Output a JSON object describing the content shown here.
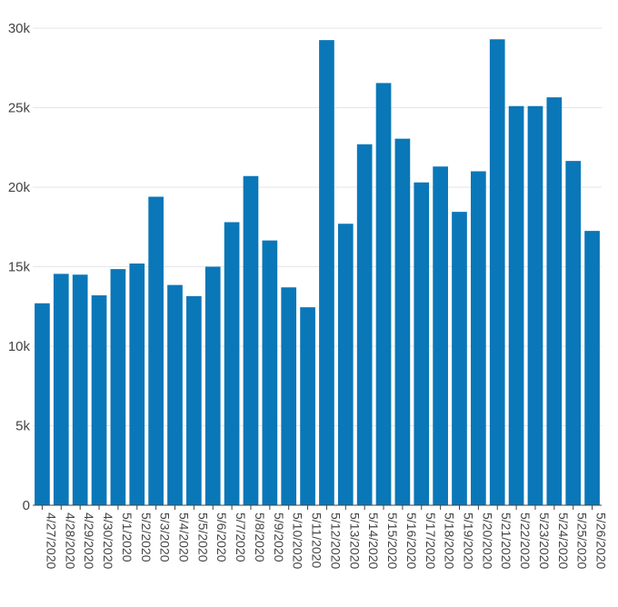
{
  "chart_data": {
    "type": "bar",
    "title": "",
    "xlabel": "",
    "ylabel": "",
    "ylim": [
      0,
      30000
    ],
    "yticks": [
      0,
      5000,
      10000,
      15000,
      20000,
      25000,
      30000
    ],
    "ytick_labels": [
      "0",
      "5k",
      "10k",
      "15k",
      "20k",
      "25k",
      "30k"
    ],
    "grid": true,
    "legend": "none",
    "bar_color": "#0a77b8",
    "categories": [
      "4/27/2020",
      "4/28/2020",
      "4/29/2020",
      "4/30/2020",
      "5/1/2020",
      "5/2/2020",
      "5/3/2020",
      "5/4/2020",
      "5/5/2020",
      "5/6/2020",
      "5/7/2020",
      "5/8/2020",
      "5/9/2020",
      "5/10/2020",
      "5/11/2020",
      "5/12/2020",
      "5/13/2020",
      "5/14/2020",
      "5/15/2020",
      "5/16/2020",
      "5/17/2020",
      "5/18/2020",
      "5/19/2020",
      "5/20/2020",
      "5/21/2020",
      "5/22/2020",
      "5/23/2020",
      "5/24/2020",
      "5/25/2020",
      "5/26/2020"
    ],
    "values": [
      12700,
      14550,
      14500,
      13200,
      14850,
      15200,
      19400,
      13850,
      13150,
      15000,
      17800,
      20700,
      16650,
      13700,
      12450,
      29250,
      17700,
      22700,
      26550,
      23050,
      20300,
      21300,
      18450,
      21000,
      29300,
      25100,
      25100,
      25650,
      21650,
      17250
    ]
  }
}
